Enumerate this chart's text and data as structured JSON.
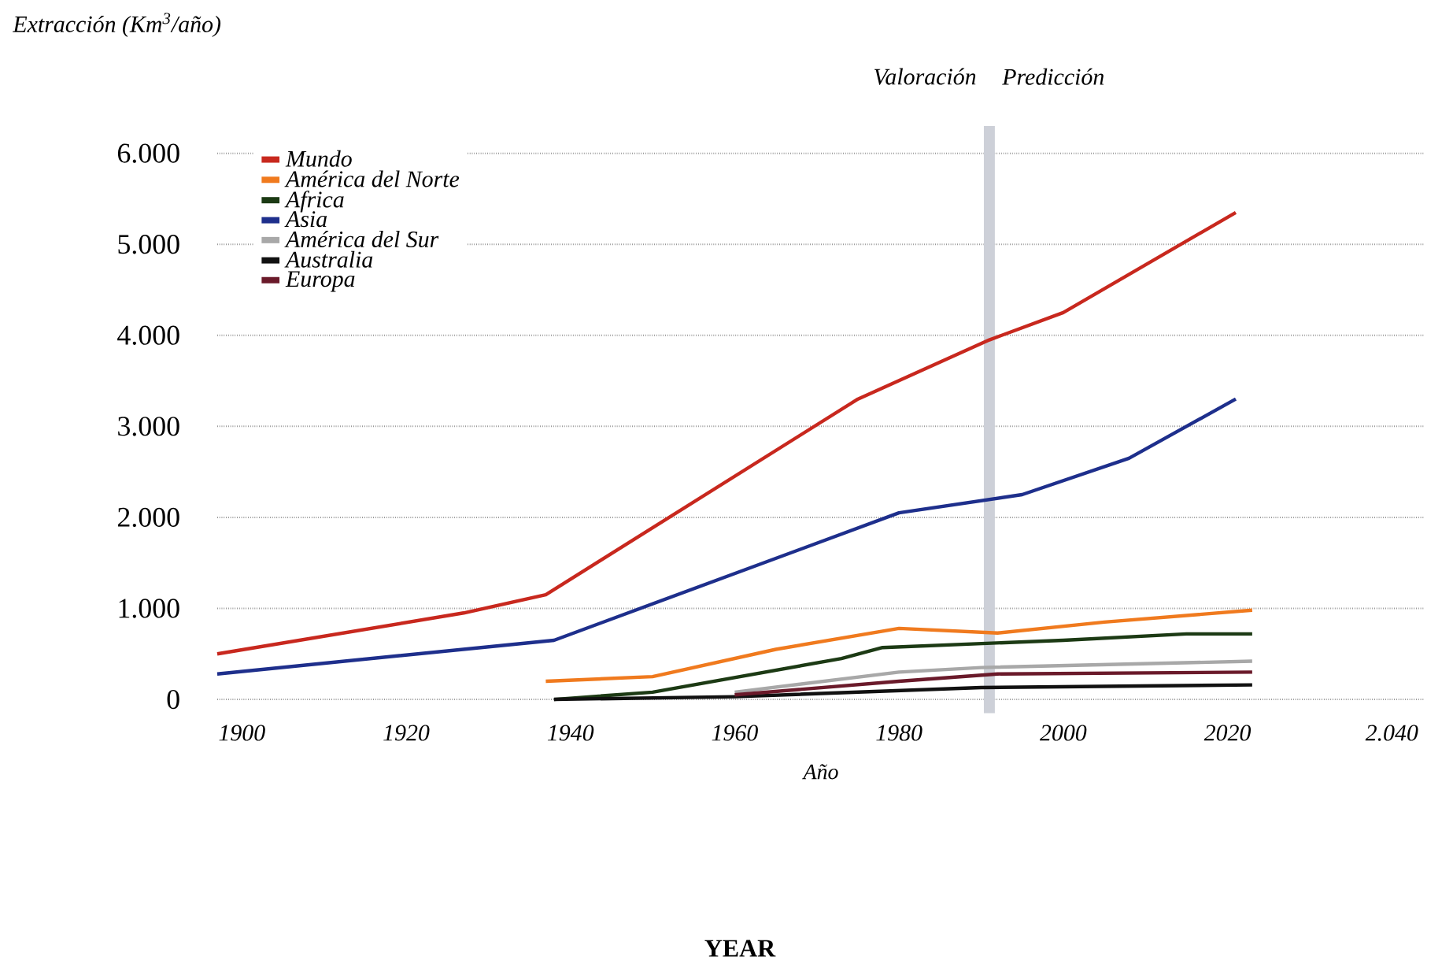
{
  "chart_data": {
    "type": "line",
    "ylabel": "Extracción (Km$^{3}$/año)",
    "xlabel": "Año",
    "annotations": [
      "Valoración",
      "Predicción",
      "YEAR"
    ],
    "xlim": [
      1897,
      2044
    ],
    "ylim": [
      -150,
      6300
    ],
    "xticks": [
      1900,
      1920,
      1940,
      1960,
      1980,
      2000,
      2020,
      {
        "value": 2040,
        "label": "2.040"
      }
    ],
    "yticks": [
      0,
      {
        "value": 1000,
        "label": "1.000"
      },
      {
        "value": 2000,
        "label": "2.000"
      },
      {
        "value": 3000,
        "label": "3.000"
      },
      {
        "value": 4000,
        "label": "4.000"
      },
      {
        "value": 5000,
        "label": "5.000"
      },
      {
        "value": 6000,
        "label": "6.000"
      }
    ],
    "grid": "y",
    "legend": "top left",
    "ref_lines": [
      {
        "axis": "x",
        "value": 1991,
        "color": "#cdd0d8"
      }
    ],
    "series": [
      {
        "name": "Mundo",
        "color": "#c8281e",
        "x": [
          1897,
          1927,
          1937,
          1975,
          1991,
          2000,
          2021
        ],
        "values": [
          500,
          950,
          1150,
          3300,
          3950,
          4250,
          5350
        ]
      },
      {
        "name": "América del Norte",
        "color": "#f07a1e",
        "x": [
          1937,
          1950,
          1965,
          1980,
          1992,
          2005,
          2023
        ],
        "values": [
          200,
          250,
          550,
          780,
          730,
          850,
          980
        ]
      },
      {
        "name": "Africa",
        "color": "#1c3a14",
        "x": [
          1938,
          1950,
          1973,
          1978,
          2000,
          2015,
          2023
        ],
        "values": [
          0,
          80,
          450,
          570,
          650,
          720,
          720
        ]
      },
      {
        "name": "Asia",
        "color": "#1e2f8c",
        "x": [
          1897,
          1938,
          1980,
          1995,
          2008,
          2021
        ],
        "values": [
          280,
          650,
          2050,
          2250,
          2650,
          3300
        ]
      },
      {
        "name": "América del Sur",
        "color": "#a8a8a8",
        "x": [
          1960,
          1980,
          1990,
          2023
        ],
        "values": [
          80,
          300,
          350,
          420
        ]
      },
      {
        "name": "Australia",
        "color": "#111111",
        "x": [
          1938,
          1960,
          1990,
          2023
        ],
        "values": [
          0,
          30,
          130,
          160
        ]
      },
      {
        "name": "Europa",
        "color": "#6a1a2a",
        "x": [
          1960,
          1980,
          1992,
          2023
        ],
        "values": [
          50,
          200,
          280,
          300
        ]
      }
    ]
  }
}
